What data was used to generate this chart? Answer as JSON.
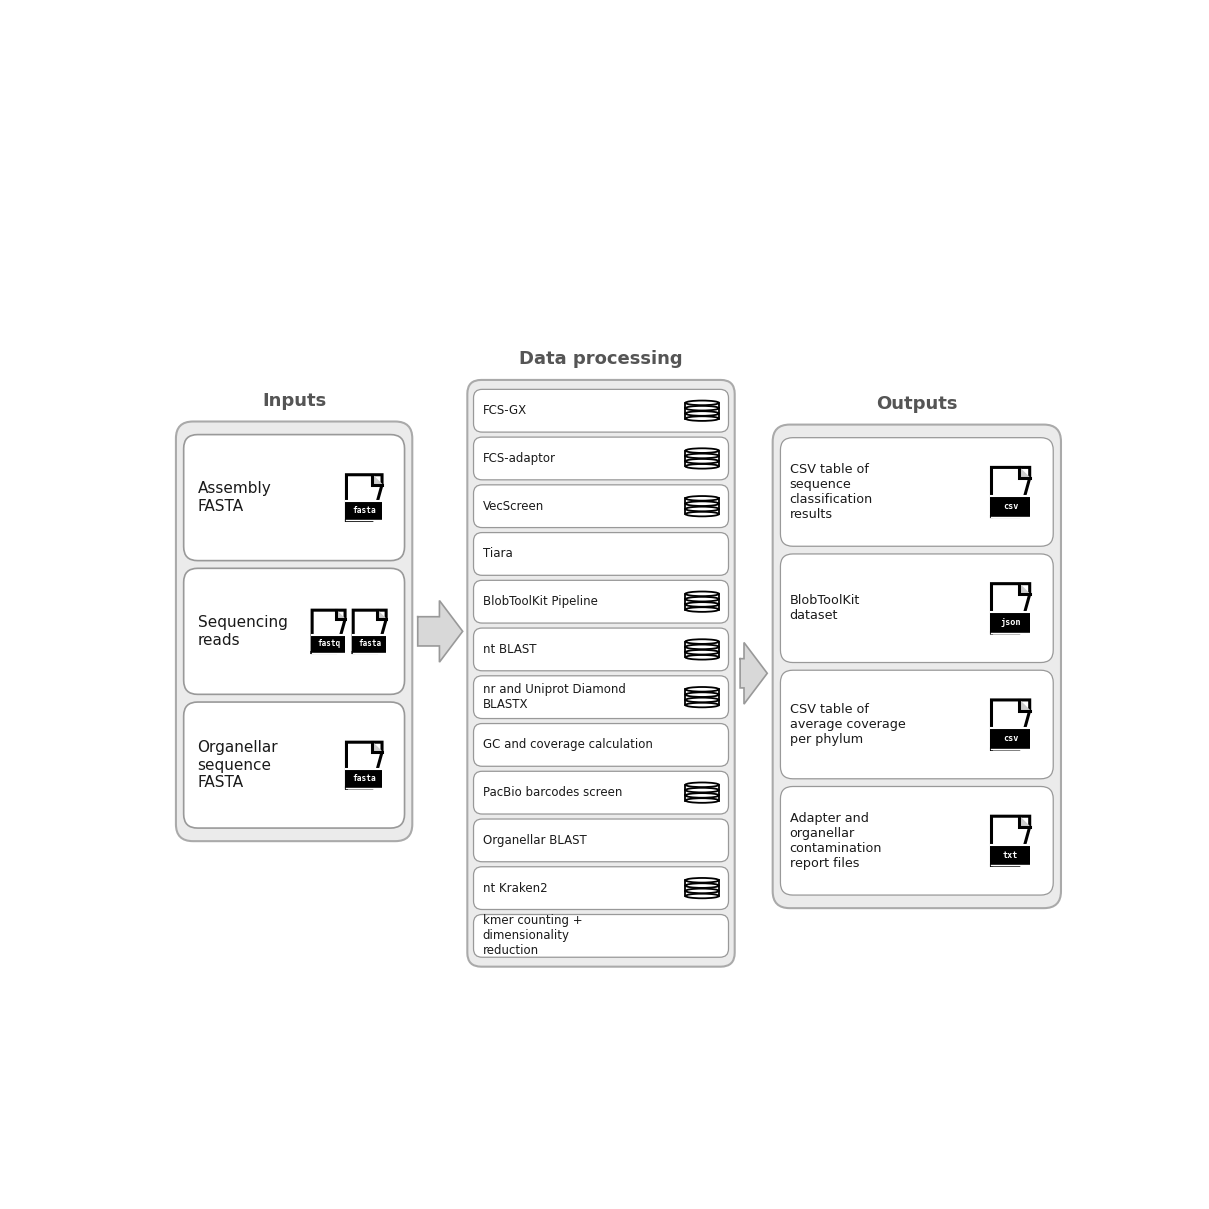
{
  "bg_color": "#ffffff",
  "title_inputs": "Inputs",
  "title_processing": "Data processing",
  "title_outputs": "Outputs",
  "inputs": [
    {
      "label": "Assembly\nFASTA",
      "icons": [
        "fasta"
      ]
    },
    {
      "label": "Sequencing\nreads",
      "icons": [
        "fastq",
        "fasta"
      ]
    },
    {
      "label": "Organellar\nsequence\nFASTA",
      "icons": [
        "fasta"
      ]
    }
  ],
  "processing": [
    {
      "label": "FCS-GX",
      "has_db": true
    },
    {
      "label": "FCS-adaptor",
      "has_db": true
    },
    {
      "label": "VecScreen",
      "has_db": true
    },
    {
      "label": "Tiara",
      "has_db": false
    },
    {
      "label": "BlobToolKit Pipeline",
      "has_db": true
    },
    {
      "label": "nt BLAST",
      "has_db": true
    },
    {
      "label": "nr and Uniprot Diamond\nBLASTX",
      "has_db": true
    },
    {
      "label": "GC and coverage calculation",
      "has_db": false
    },
    {
      "label": "PacBio barcodes screen",
      "has_db": true
    },
    {
      "label": "Organellar BLAST",
      "has_db": false
    },
    {
      "label": "nt Kraken2",
      "has_db": true
    },
    {
      "label": "kmer counting +\ndimensionality\nreduction",
      "has_db": false
    }
  ],
  "outputs": [
    {
      "label": "CSV table of\nsequence\nclassification\nresults",
      "icon": "csv"
    },
    {
      "label": "BlobToolKit\ndataset",
      "icon": "json"
    },
    {
      "label": "CSV table of\naverage coverage\nper phylum",
      "icon": "csv"
    },
    {
      "label": "Adapter and\norganellar\ncontamination\nreport files",
      "icon": "txt"
    }
  ],
  "outer_box_facecolor": "#ebebeb",
  "outer_box_edgecolor": "#aaaaaa",
  "inner_box_facecolor": "#ffffff",
  "inner_box_edgecolor": "#999999",
  "text_color": "#1a1a1a",
  "title_color": "#555555",
  "arrow_fill": "#d8d8d8",
  "arrow_edge": "#999999"
}
